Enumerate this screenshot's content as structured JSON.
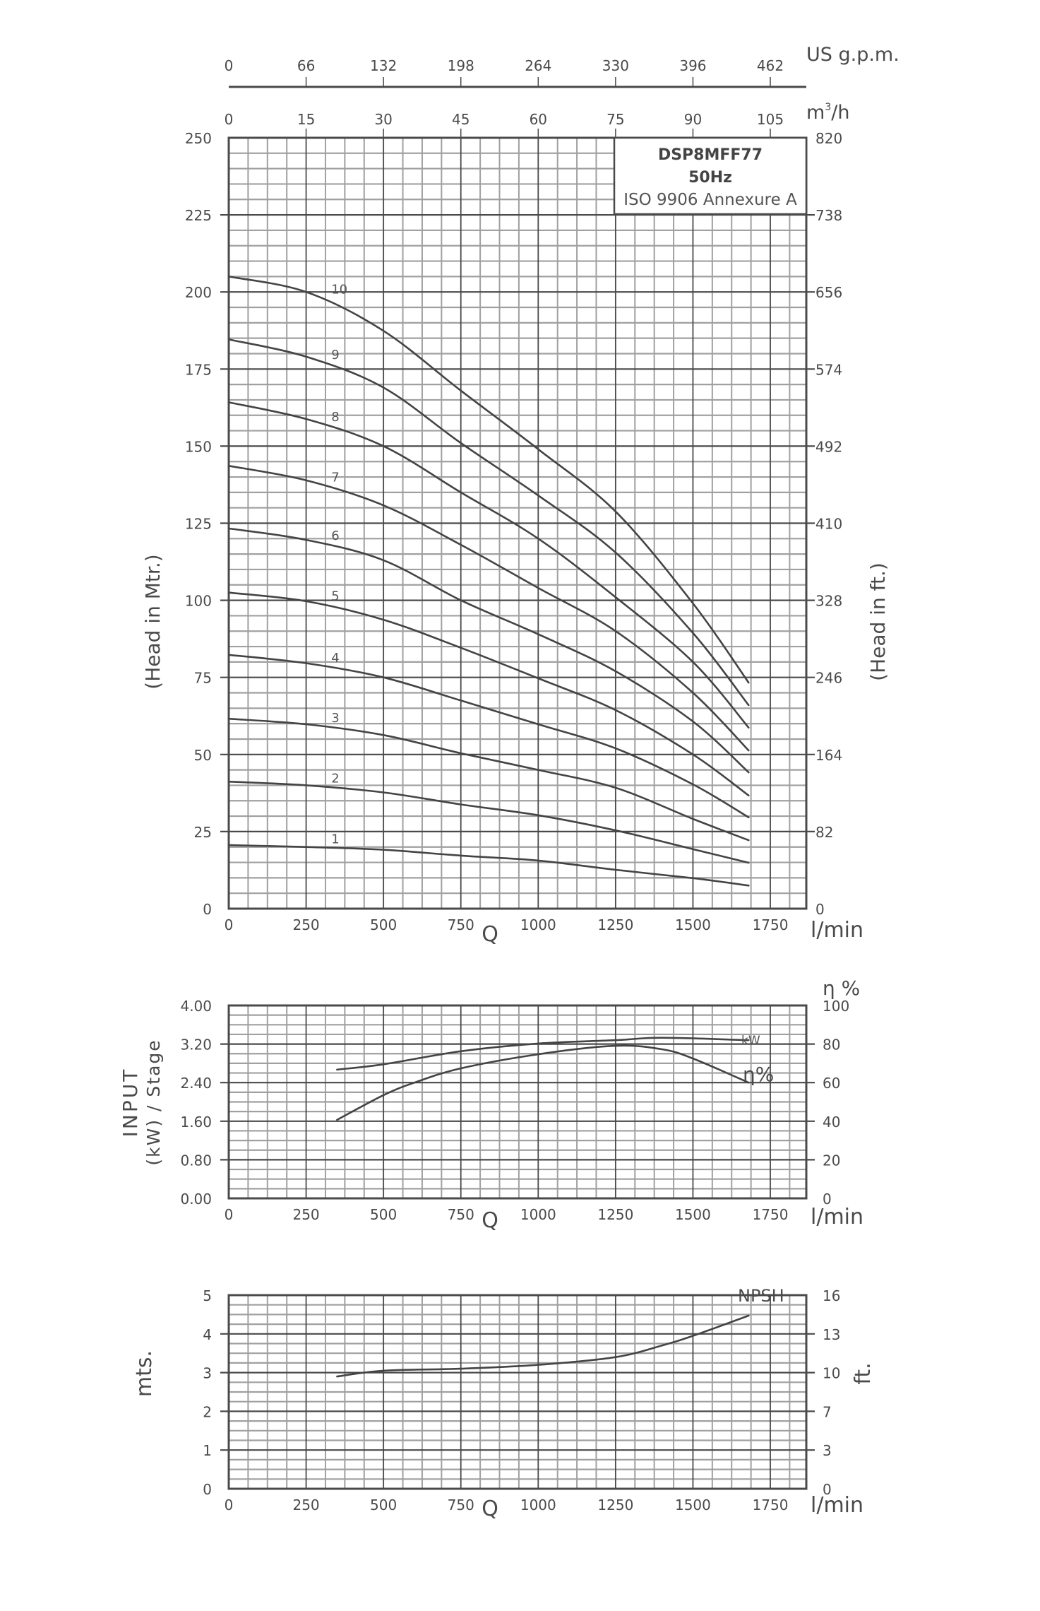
{
  "title_box": {
    "model": "DSP8MFF77",
    "frequency": "50Hz",
    "standard": "ISO 9906 Annexure A"
  },
  "top_axes": {
    "gpm": {
      "unit": "US g.p.m.",
      "ticks": [
        "0",
        "66",
        "132",
        "198",
        "264",
        "330",
        "396",
        "462"
      ]
    },
    "m3h": {
      "unit_base": "m",
      "unit_sup": "3",
      "unit_rest": "/h",
      "ticks": [
        "0",
        "15",
        "30",
        "45",
        "60",
        "75",
        "90",
        "105"
      ]
    }
  },
  "x_axis": {
    "label": "Q",
    "unit": "l/min",
    "ticks": [
      "0",
      "250",
      "500",
      "750",
      "1000",
      "1250",
      "1500",
      "1750"
    ],
    "tick_values": [
      0,
      250,
      500,
      750,
      1000,
      1250,
      1500,
      1750
    ]
  },
  "head_chart": {
    "left_title": "(Head in Mtr.)",
    "right_title": "(Head in ft.)",
    "left_ticks": [
      "250",
      "225",
      "200",
      "175",
      "150",
      "125",
      "100",
      "75",
      "50",
      "25",
      "0"
    ],
    "right_ticks": [
      "820",
      "738",
      "656",
      "574",
      "492",
      "410",
      "328",
      "246",
      "164",
      "82",
      "0"
    ]
  },
  "power_chart": {
    "left_title_1": "INPUT",
    "left_title_2": "(kW) / Stage",
    "right_title": "η %",
    "left_ticks": [
      "4.00",
      "3.20",
      "2.40",
      "1.60",
      "0.80",
      "0.00"
    ],
    "right_ticks": [
      "100",
      "80",
      "60",
      "40",
      "20",
      "0"
    ],
    "kw_label": "kW",
    "eff_label": "η%"
  },
  "npsh_chart": {
    "left_title": "mts.",
    "right_title": "ft.",
    "left_ticks": [
      "5",
      "4",
      "3",
      "2",
      "1",
      "0"
    ],
    "right_ticks": [
      "16",
      "13",
      "10",
      "7",
      "3",
      "0"
    ],
    "curve_label": "NPSH"
  },
  "colors": {
    "major_grid": "#4a4a4a",
    "minor_grid": "#a0a0a0",
    "curve": "#444444",
    "text": "#4a4a4a"
  },
  "chart_data": [
    {
      "type": "line",
      "title": "DSP8MFF77 50Hz ISO 9906 Annexure A",
      "xlabel": "Q (l/min)",
      "ylabel": "(Head in Mtr.)",
      "y2label": "(Head in ft.)",
      "xlim": [
        0,
        1866
      ],
      "ylim": [
        0,
        250
      ],
      "grid": true,
      "x": [
        0,
        250,
        500,
        750,
        1000,
        1250,
        1500,
        1680
      ],
      "series": [
        {
          "name": "1",
          "values": [
            20.6,
            20.0,
            19.1,
            17.2,
            15.6,
            12.6,
            9.9,
            7.5
          ]
        },
        {
          "name": "2",
          "values": [
            41.2,
            40.0,
            37.7,
            33.8,
            30.3,
            25.4,
            19.3,
            14.9
          ]
        },
        {
          "name": "3",
          "values": [
            61.6,
            59.8,
            56.3,
            50.4,
            45.0,
            39.2,
            29.1,
            22.2
          ]
        },
        {
          "name": "4",
          "values": [
            82.3,
            79.6,
            75.0,
            67.5,
            59.8,
            52.0,
            40.3,
            29.6
          ]
        },
        {
          "name": "5",
          "values": [
            102.5,
            99.7,
            93.7,
            84.6,
            74.7,
            64.4,
            50.0,
            36.7
          ]
        },
        {
          "name": "6",
          "values": [
            123.3,
            119.6,
            113.0,
            100.0,
            89.0,
            77.0,
            60.7,
            44.2
          ]
        },
        {
          "name": "7",
          "values": [
            143.6,
            138.9,
            130.8,
            118.0,
            104.0,
            90.0,
            70.0,
            51.3
          ]
        },
        {
          "name": "8",
          "values": [
            164.2,
            158.8,
            150.0,
            135.0,
            120.0,
            101.0,
            80.0,
            58.7
          ]
        },
        {
          "name": "9",
          "values": [
            184.6,
            179.0,
            169.0,
            151.0,
            134.0,
            115.5,
            89.4,
            66.0
          ]
        },
        {
          "name": "10",
          "values": [
            205.0,
            200.0,
            187.4,
            168.0,
            149.0,
            128.8,
            99.0,
            73.3
          ]
        }
      ]
    },
    {
      "type": "line",
      "title": "INPUT (kW) / Stage and efficiency",
      "xlabel": "Q (l/min)",
      "ylabel": "INPUT (kW) / Stage",
      "y2label": "η %",
      "xlim": [
        0,
        1866
      ],
      "ylim": [
        0,
        4.0
      ],
      "y2lim": [
        0,
        100
      ],
      "grid": true,
      "series": [
        {
          "name": "kW",
          "axis": "left",
          "x": [
            350,
            500,
            750,
            1000,
            1250,
            1400,
            1680
          ],
          "values": [
            2.67,
            2.78,
            3.05,
            3.21,
            3.28,
            3.33,
            3.28
          ]
        },
        {
          "name": "η%",
          "axis": "right",
          "x": [
            350,
            500,
            600,
            750,
            1000,
            1250,
            1400,
            1500,
            1680
          ],
          "values": [
            40.7,
            53.5,
            60.0,
            67.4,
            74.7,
            79.1,
            77.3,
            72.5,
            60.0
          ]
        }
      ]
    },
    {
      "type": "line",
      "title": "NPSH",
      "xlabel": "Q (l/min)",
      "ylabel": "mts.",
      "y2label": "ft.",
      "xlim": [
        0,
        1866
      ],
      "ylim": [
        0,
        5
      ],
      "y2lim": [
        0,
        16
      ],
      "grid": true,
      "series": [
        {
          "name": "NPSH",
          "x": [
            350,
            500,
            750,
            1000,
            1250,
            1400,
            1500,
            1680
          ],
          "values": [
            2.9,
            3.05,
            3.1,
            3.2,
            3.4,
            3.7,
            3.95,
            4.47
          ]
        }
      ]
    }
  ]
}
